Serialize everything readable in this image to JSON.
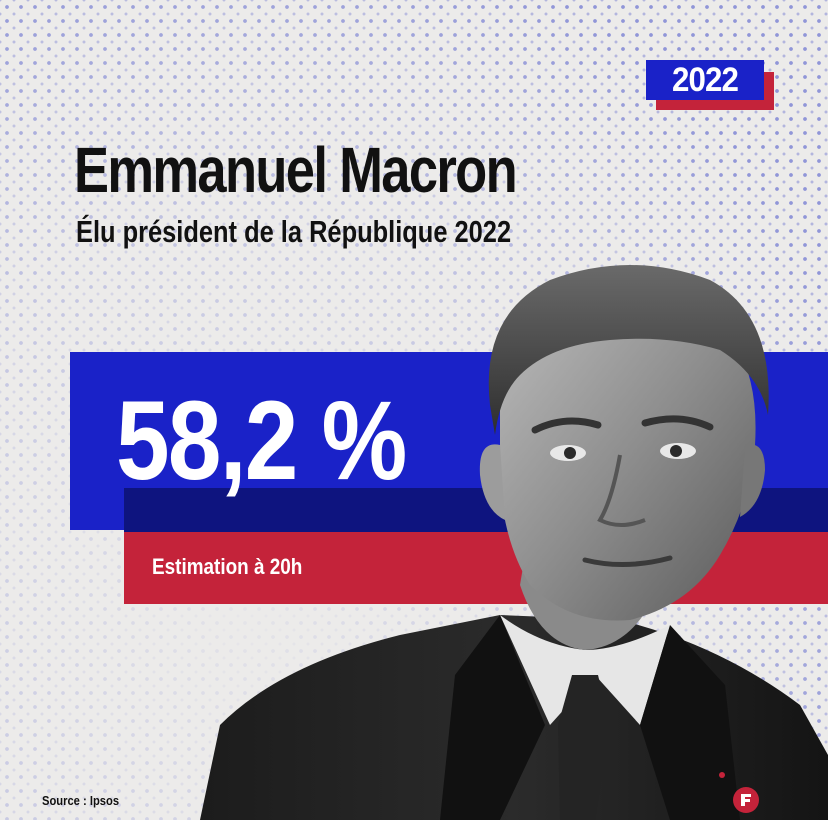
{
  "badge": {
    "year": "2022"
  },
  "headline": {
    "name": "Emmanuel Macron",
    "subtitle": "Élu président de la République 2022"
  },
  "result": {
    "percentage": "58,2 %",
    "caption": "Estimation à 20h"
  },
  "footer": {
    "source": "Source : Ipsos"
  },
  "colors": {
    "blue": "#1a22c8",
    "navy": "#0e147f",
    "red": "#c4233a",
    "background": "#ecebea"
  },
  "icons": {
    "brand": "brand-logo-icon"
  }
}
